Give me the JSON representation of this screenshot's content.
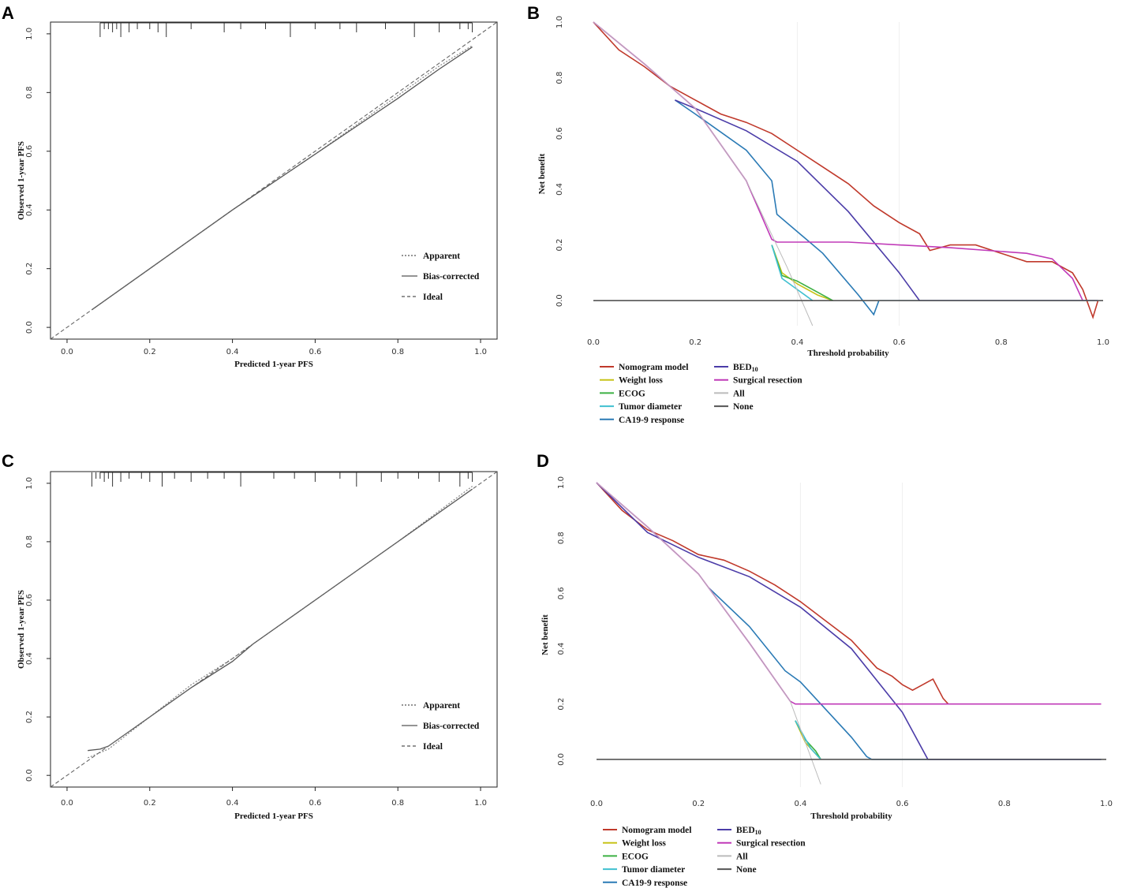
{
  "panels": [
    {
      "id": "A",
      "label": "A",
      "type": "calibration",
      "xlabel": "Predicted 1-year PFS",
      "ylabel": "Observed 1-year PFS",
      "xticks": [
        "0.0",
        "0.2",
        "0.4",
        "0.6",
        "0.8",
        "1.0"
      ],
      "yticks": [
        "0.0",
        "0.2",
        "0.4",
        "0.6",
        "0.8",
        "1.0"
      ],
      "legend": [
        "Apparent",
        "Bias-corrected",
        "Ideal"
      ]
    },
    {
      "id": "B",
      "label": "B",
      "type": "dca",
      "xlabel": "Threshold probability",
      "ylabel": "Net benefit",
      "xticks": [
        "0.0",
        "0.2",
        "0.4",
        "0.6",
        "0.8",
        "1.0"
      ],
      "yticks": [
        "0.0",
        "0.2",
        "0.4",
        "0.6",
        "0.8",
        "1.0"
      ]
    },
    {
      "id": "C",
      "label": "C",
      "type": "calibration",
      "xlabel": "Predicted 1-year PFS",
      "ylabel": "Observed 1-year PFS",
      "xticks": [
        "0.0",
        "0.2",
        "0.4",
        "0.6",
        "0.8",
        "1.0"
      ],
      "yticks": [
        "0.0",
        "0.2",
        "0.4",
        "0.6",
        "0.8",
        "1.0"
      ],
      "legend": [
        "Apparent",
        "Bias-corrected",
        "Ideal"
      ]
    },
    {
      "id": "D",
      "label": "D",
      "type": "dca",
      "xlabel": "Threshold probability",
      "ylabel": "Net benefit",
      "xticks": [
        "0.0",
        "0.2",
        "0.4",
        "0.6",
        "0.8",
        "1.0"
      ],
      "yticks": [
        "0.0",
        "0.2",
        "0.4",
        "0.6",
        "0.8",
        "1.0"
      ]
    }
  ],
  "dca_legend": {
    "left": [
      {
        "name": "Nomogram model",
        "color": "#c0392b"
      },
      {
        "name": "Weight loss",
        "color": "#c8c41a"
      },
      {
        "name": "ECOG",
        "color": "#3cb043"
      },
      {
        "name": "Tumor diameter",
        "color": "#40c0d0"
      },
      {
        "name": "CA19-9 response",
        "color": "#2a7ab5"
      }
    ],
    "right": [
      {
        "name": "BED",
        "sub": "10",
        "color": "#4b3ca8"
      },
      {
        "name": "Surgical resection",
        "color": "#c03ab8"
      },
      {
        "name": "All",
        "color": "#bbbbbb"
      },
      {
        "name": "None",
        "color": "#555555"
      }
    ]
  },
  "chart_data": [
    {
      "panel": "A",
      "type": "line",
      "title": "",
      "xlabel": "Predicted 1-year PFS",
      "ylabel": "Observed 1-year PFS",
      "xlim": [
        -0.04,
        1.04
      ],
      "ylim": [
        -0.04,
        1.04
      ],
      "series": [
        {
          "name": "Apparent",
          "x": [
            0.06,
            0.2,
            0.4,
            0.6,
            0.8,
            0.9,
            0.98
          ],
          "y": [
            0.06,
            0.2,
            0.4,
            0.59,
            0.79,
            0.89,
            0.96
          ]
        },
        {
          "name": "Bias-corrected",
          "x": [
            0.06,
            0.2,
            0.4,
            0.6,
            0.8,
            0.9,
            0.98
          ],
          "y": [
            0.06,
            0.2,
            0.4,
            0.59,
            0.78,
            0.88,
            0.955
          ]
        },
        {
          "name": "Ideal",
          "x": [
            -0.04,
            1.04
          ],
          "y": [
            -0.04,
            1.04
          ]
        }
      ],
      "rug": [
        0.08,
        0.09,
        0.1,
        0.11,
        0.12,
        0.13,
        0.15,
        0.17,
        0.2,
        0.22,
        0.24,
        0.3,
        0.38,
        0.42,
        0.48,
        0.54,
        0.6,
        0.66,
        0.7,
        0.77,
        0.84,
        0.9,
        0.95,
        0.97,
        0.98
      ]
    },
    {
      "panel": "B",
      "type": "line",
      "xlabel": "Threshold probability",
      "ylabel": "Net benefit",
      "xlim": [
        0,
        1
      ],
      "ylim": [
        -0.06,
        1.0
      ],
      "series": [
        {
          "name": "Nomogram model",
          "x": [
            0,
            0.05,
            0.1,
            0.15,
            0.2,
            0.25,
            0.3,
            0.35,
            0.4,
            0.45,
            0.5,
            0.55,
            0.6,
            0.64,
            0.66,
            0.7,
            0.75,
            0.8,
            0.85,
            0.9,
            0.94,
            0.96,
            0.98,
            0.99
          ],
          "y": [
            1,
            0.9,
            0.84,
            0.77,
            0.72,
            0.67,
            0.64,
            0.6,
            0.54,
            0.48,
            0.42,
            0.34,
            0.28,
            0.24,
            0.18,
            0.2,
            0.2,
            0.17,
            0.14,
            0.14,
            0.1,
            0.04,
            -0.06,
            0
          ]
        },
        {
          "name": "Weight loss",
          "x": [
            0.35,
            0.37,
            0.4,
            0.44,
            0.47
          ],
          "y": [
            0.2,
            0.1,
            0.06,
            0.02,
            0
          ]
        },
        {
          "name": "ECOG",
          "x": [
            0.35,
            0.37,
            0.4,
            0.44,
            0.47
          ],
          "y": [
            0.2,
            0.09,
            0.07,
            0.03,
            0
          ]
        },
        {
          "name": "Tumor diameter",
          "x": [
            0.35,
            0.37,
            0.4,
            0.43
          ],
          "y": [
            0.2,
            0.08,
            0.04,
            0
          ]
        },
        {
          "name": "CA19-9 response",
          "x": [
            0.16,
            0.2,
            0.3,
            0.35,
            0.36,
            0.45,
            0.52,
            0.55,
            0.56,
            0.6,
            0.99
          ],
          "y": [
            0.72,
            0.67,
            0.54,
            0.43,
            0.31,
            0.17,
            0.02,
            -0.05,
            0,
            0,
            0
          ]
        },
        {
          "name": "BED10",
          "x": [
            0.16,
            0.2,
            0.3,
            0.4,
            0.5,
            0.6,
            0.64,
            0.99
          ],
          "y": [
            0.72,
            0.69,
            0.61,
            0.5,
            0.32,
            0.1,
            0,
            0
          ]
        },
        {
          "name": "Surgical resection",
          "x": [
            0,
            0.1,
            0.2,
            0.3,
            0.35,
            0.36,
            0.5,
            0.7,
            0.85,
            0.9,
            0.94,
            0.96
          ],
          "y": [
            1,
            0.85,
            0.69,
            0.43,
            0.22,
            0.21,
            0.21,
            0.19,
            0.17,
            0.15,
            0.08,
            0
          ]
        },
        {
          "name": "All",
          "x": [
            0,
            0.1,
            0.2,
            0.3,
            0.38,
            0.43
          ],
          "y": [
            1,
            0.85,
            0.69,
            0.43,
            0.12,
            -0.09
          ]
        },
        {
          "name": "None",
          "x": [
            0,
            1
          ],
          "y": [
            0,
            0
          ]
        }
      ]
    },
    {
      "panel": "C",
      "type": "line",
      "xlabel": "Predicted 1-year PFS",
      "ylabel": "Observed 1-year PFS",
      "xlim": [
        -0.04,
        1.04
      ],
      "ylim": [
        -0.04,
        1.04
      ],
      "series": [
        {
          "name": "Apparent",
          "x": [
            0.05,
            0.1,
            0.2,
            0.3,
            0.4,
            0.5,
            0.6,
            0.8,
            0.98
          ],
          "y": [
            0.06,
            0.09,
            0.2,
            0.31,
            0.4,
            0.5,
            0.6,
            0.8,
            0.99
          ]
        },
        {
          "name": "Bias-corrected",
          "x": [
            0.05,
            0.08,
            0.1,
            0.2,
            0.3,
            0.4,
            0.45,
            0.5,
            0.6,
            0.8,
            0.98
          ],
          "y": [
            0.085,
            0.09,
            0.1,
            0.2,
            0.3,
            0.39,
            0.45,
            0.5,
            0.6,
            0.8,
            0.98
          ]
        },
        {
          "name": "Ideal",
          "x": [
            -0.04,
            1.04
          ],
          "y": [
            -0.04,
            1.04
          ]
        }
      ],
      "rug": [
        0.06,
        0.07,
        0.08,
        0.09,
        0.1,
        0.11,
        0.13,
        0.15,
        0.18,
        0.2,
        0.23,
        0.26,
        0.3,
        0.34,
        0.38,
        0.42,
        0.5,
        0.55,
        0.6,
        0.66,
        0.7,
        0.76,
        0.8,
        0.85,
        0.9,
        0.95,
        0.97,
        0.98
      ]
    },
    {
      "panel": "D",
      "type": "line",
      "xlabel": "Threshold probability",
      "ylabel": "Net benefit",
      "xlim": [
        0,
        1
      ],
      "ylim": [
        -0.1,
        1.0
      ],
      "series": [
        {
          "name": "Nomogram model",
          "x": [
            0,
            0.05,
            0.1,
            0.15,
            0.2,
            0.25,
            0.3,
            0.35,
            0.4,
            0.45,
            0.5,
            0.55,
            0.58,
            0.6,
            0.62,
            0.64,
            0.66,
            0.68,
            0.69
          ],
          "y": [
            1,
            0.9,
            0.83,
            0.79,
            0.74,
            0.72,
            0.68,
            0.63,
            0.57,
            0.5,
            0.43,
            0.33,
            0.3,
            0.27,
            0.25,
            0.27,
            0.29,
            0.22,
            0.2
          ]
        },
        {
          "name": "Weight loss",
          "x": [
            0.39,
            0.41,
            0.43,
            0.44
          ],
          "y": [
            0.14,
            0.06,
            0.02,
            0
          ]
        },
        {
          "name": "ECOG",
          "x": [
            0.39,
            0.41,
            0.43,
            0.44
          ],
          "y": [
            0.14,
            0.07,
            0.03,
            0
          ]
        },
        {
          "name": "Tumor diameter",
          "x": [
            0.39,
            0.42,
            0.44
          ],
          "y": [
            0.14,
            0.04,
            0
          ]
        },
        {
          "name": "CA19-9 response",
          "x": [
            0.22,
            0.3,
            0.37,
            0.4,
            0.5,
            0.53,
            0.54,
            0.99
          ],
          "y": [
            0.62,
            0.48,
            0.32,
            0.28,
            0.08,
            0.01,
            0,
            0
          ]
        },
        {
          "name": "BED10",
          "x": [
            0,
            0.1,
            0.2,
            0.3,
            0.4,
            0.5,
            0.6,
            0.65,
            0.99
          ],
          "y": [
            1,
            0.82,
            0.73,
            0.66,
            0.55,
            0.4,
            0.17,
            0,
            0
          ]
        },
        {
          "name": "Surgical resection",
          "x": [
            0,
            0.1,
            0.2,
            0.3,
            0.38,
            0.39,
            0.99
          ],
          "y": [
            1,
            0.84,
            0.67,
            0.42,
            0.21,
            0.2,
            0.2
          ]
        },
        {
          "name": "All",
          "x": [
            0,
            0.1,
            0.2,
            0.3,
            0.38,
            0.44
          ],
          "y": [
            1,
            0.84,
            0.67,
            0.42,
            0.21,
            -0.09
          ]
        },
        {
          "name": "None",
          "x": [
            0,
            1
          ],
          "y": [
            0,
            0
          ]
        }
      ]
    }
  ]
}
